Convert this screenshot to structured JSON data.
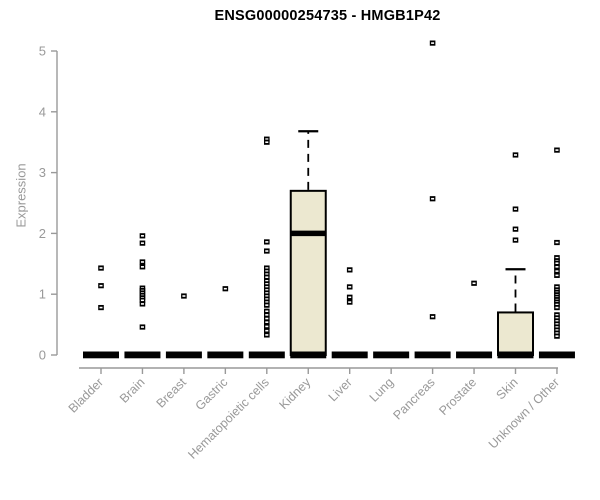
{
  "chart_data": {
    "type": "boxplot",
    "title": "ENSG00000254735 - HMGB1P42",
    "ylabel": "Expression",
    "xlabel": "",
    "ylim": [
      0,
      5
    ],
    "yticks": [
      0,
      1,
      2,
      3,
      4,
      5
    ],
    "grid": false,
    "legend": "none",
    "categories": [
      "Bladder",
      "Brain",
      "Breast",
      "Gastric",
      "Hematopoietic cells",
      "Kidney",
      "Liver",
      "Lung",
      "Pancreas",
      "Prostate",
      "Skin",
      "Unknown / Other"
    ],
    "series": [
      {
        "category": "Bladder",
        "q1": 0,
        "median": 0,
        "q3": 0,
        "whisker_low": 0,
        "whisker_high": 0,
        "outliers": [
          1.43,
          1.14,
          0.78
        ]
      },
      {
        "category": "Brain",
        "q1": 0,
        "median": 0,
        "q3": 0,
        "whisker_low": 0,
        "whisker_high": 0,
        "outliers": [
          1.96,
          1.84,
          1.53,
          1.45,
          1.1,
          1.06,
          1.02,
          0.98,
          0.94,
          0.9,
          0.84,
          0.46
        ]
      },
      {
        "category": "Breast",
        "q1": 0,
        "median": 0,
        "q3": 0,
        "whisker_low": 0,
        "whisker_high": 0,
        "outliers": [
          0.97
        ]
      },
      {
        "category": "Gastric",
        "q1": 0,
        "median": 0,
        "q3": 0,
        "whisker_low": 0,
        "whisker_high": 0,
        "outliers": [
          1.09
        ]
      },
      {
        "category": "Hematopoietic cells",
        "q1": 0,
        "median": 0,
        "q3": 0,
        "whisker_low": 0,
        "whisker_high": 0,
        "outliers": [
          3.55,
          3.5,
          1.86,
          1.71,
          1.43,
          1.38,
          1.33,
          1.28,
          1.22,
          1.17,
          1.12,
          1.07,
          1.02,
          0.97,
          0.92,
          0.87,
          0.82,
          0.72,
          0.66,
          0.6,
          0.54,
          0.47,
          0.4,
          0.33
        ]
      },
      {
        "category": "Kidney",
        "q1": 0,
        "median": 2.0,
        "q3": 2.7,
        "whisker_low": 0,
        "whisker_high": 3.68,
        "outliers": []
      },
      {
        "category": "Liver",
        "q1": 0,
        "median": 0,
        "q3": 0,
        "whisker_low": 0,
        "whisker_high": 0,
        "outliers": [
          1.4,
          1.12,
          0.95,
          0.87
        ]
      },
      {
        "category": "Lung",
        "q1": 0,
        "median": 0,
        "q3": 0,
        "whisker_low": 0,
        "whisker_high": 0,
        "outliers": []
      },
      {
        "category": "Pancreas",
        "q1": 0,
        "median": 0,
        "q3": 0,
        "whisker_low": 0,
        "whisker_high": 0,
        "outliers": [
          5.13,
          2.57,
          0.63
        ]
      },
      {
        "category": "Prostate",
        "q1": 0,
        "median": 0,
        "q3": 0,
        "whisker_low": 0,
        "whisker_high": 0,
        "outliers": [
          1.18
        ]
      },
      {
        "category": "Skin",
        "q1": 0,
        "median": 0,
        "q3": 0.7,
        "whisker_low": 0,
        "whisker_high": 1.41,
        "outliers": [
          3.29,
          2.4,
          2.07,
          1.89
        ]
      },
      {
        "category": "Unknown / Other",
        "q1": 0,
        "median": 0,
        "q3": 0,
        "whisker_low": 0,
        "whisker_high": 0,
        "outliers": [
          3.37,
          1.85,
          1.6,
          1.55,
          1.51,
          1.45,
          1.38,
          1.31,
          1.12,
          1.07,
          1.03,
          0.99,
          0.95,
          0.91,
          0.87,
          0.83,
          0.78,
          0.66,
          0.61,
          0.56,
          0.51,
          0.46,
          0.41,
          0.36,
          0.31
        ]
      }
    ],
    "colors": {
      "box_fill": "#ece8d0",
      "box_border": "#000000",
      "median": "#000000",
      "point": "#000000",
      "point_center": "#ffffff",
      "axis": "#999999",
      "tick_label": "#999999",
      "title": "#000000",
      "background": "#ffffff"
    }
  }
}
